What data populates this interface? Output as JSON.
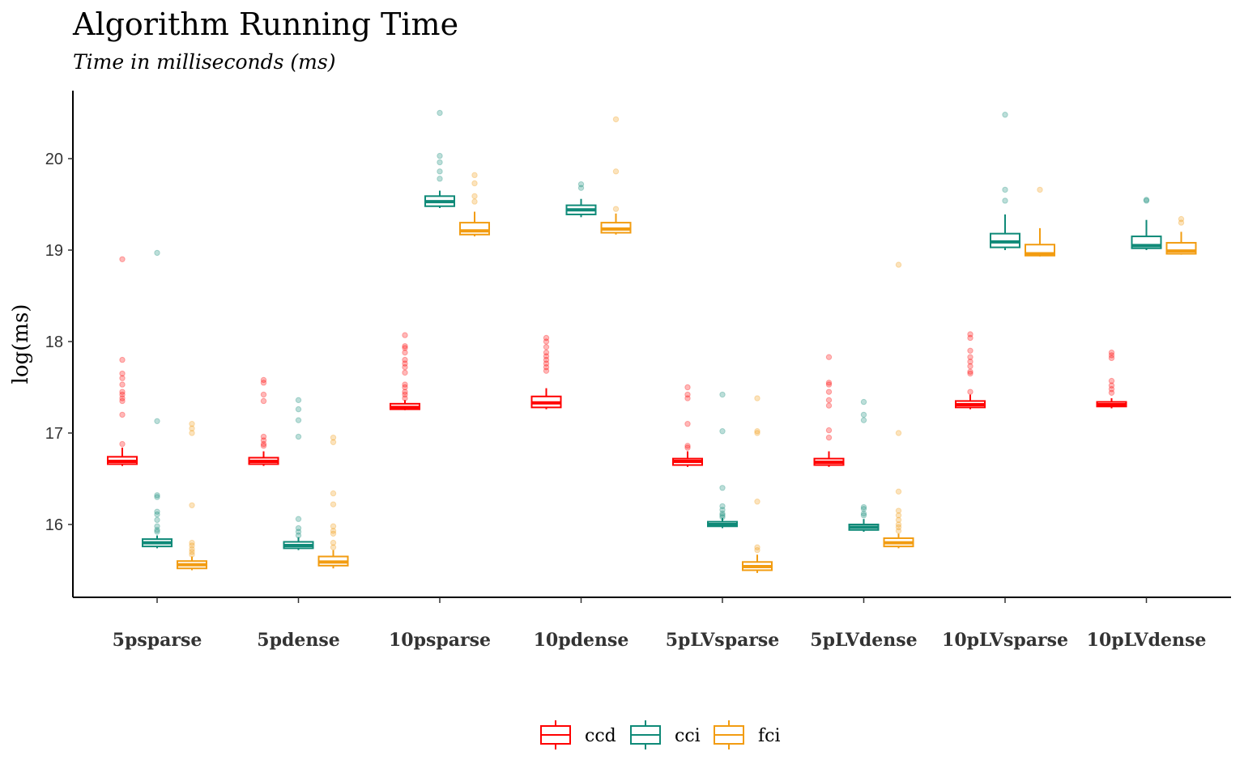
{
  "chart_data": {
    "type": "box",
    "title": "Algorithm Running Time",
    "subtitle": "Time in milliseconds (ms)",
    "xlabel": "",
    "ylabel": "log(ms)",
    "ylim": [
      15.2,
      20.75
    ],
    "yticks": [
      16,
      17,
      18,
      19,
      20
    ],
    "grid": false,
    "legend_position": "bottom",
    "categories": [
      "5psparse",
      "5pdense",
      "10psparse",
      "10pdense",
      "5pLVsparse",
      "5pLVdense",
      "10pLVsparse",
      "10pLVdense"
    ],
    "series": [
      {
        "name": "ccd",
        "color": "#FF0000",
        "boxes": [
          {
            "whislo": 16.64,
            "q1": 16.66,
            "med": 16.69,
            "q3": 16.74,
            "whishi": 16.84,
            "fliers": [
              16.88,
              17.2,
              17.35,
              17.38,
              17.42,
              17.45,
              17.53,
              17.6,
              17.65,
              17.8,
              18.9
            ]
          },
          {
            "whislo": 16.64,
            "q1": 16.66,
            "med": 16.69,
            "q3": 16.73,
            "whishi": 16.8,
            "fliers": [
              16.86,
              16.88,
              16.92,
              16.96,
              17.35,
              17.42,
              17.55,
              17.58
            ]
          },
          {
            "whislo": 17.25,
            "q1": 17.26,
            "med": 17.28,
            "q3": 17.32,
            "whishi": 17.36,
            "fliers": [
              17.38,
              17.42,
              17.45,
              17.5,
              17.53,
              17.66,
              17.72,
              17.76,
              17.8,
              17.88,
              17.93,
              17.95,
              18.07
            ]
          },
          {
            "whislo": 17.26,
            "q1": 17.28,
            "med": 17.33,
            "q3": 17.4,
            "whishi": 17.49,
            "fliers": [
              17.68,
              17.72,
              17.76,
              17.8,
              17.84,
              17.88,
              17.94,
              18.0,
              18.04
            ]
          },
          {
            "whislo": 16.63,
            "q1": 16.65,
            "med": 16.69,
            "q3": 16.72,
            "whishi": 16.8,
            "fliers": [
              16.84,
              16.86,
              17.1,
              17.38,
              17.42,
              17.5
            ]
          },
          {
            "whislo": 16.63,
            "q1": 16.65,
            "med": 16.68,
            "q3": 16.72,
            "whishi": 16.8,
            "fliers": [
              16.95,
              17.03,
              17.3,
              17.36,
              17.45,
              17.53,
              17.55,
              17.83
            ]
          },
          {
            "whislo": 17.26,
            "q1": 17.28,
            "med": 17.31,
            "q3": 17.35,
            "whishi": 17.42,
            "fliers": [
              17.45,
              17.65,
              17.67,
              17.73,
              17.78,
              17.83,
              17.9,
              18.04,
              18.08
            ]
          },
          {
            "whislo": 17.27,
            "q1": 17.29,
            "med": 17.31,
            "q3": 17.34,
            "whishi": 17.38,
            "fliers": [
              17.44,
              17.48,
              17.52,
              17.57,
              17.82,
              17.85,
              17.88
            ]
          }
        ]
      },
      {
        "name": "cci",
        "color": "#0F8A78",
        "boxes": [
          {
            "whislo": 15.74,
            "q1": 15.76,
            "med": 15.8,
            "q3": 15.84,
            "whishi": 15.88,
            "fliers": [
              15.92,
              15.94,
              15.98,
              16.05,
              16.11,
              16.14,
              16.3,
              16.32,
              17.13,
              18.97
            ]
          },
          {
            "whislo": 15.72,
            "q1": 15.74,
            "med": 15.77,
            "q3": 15.81,
            "whishi": 15.86,
            "fliers": [
              15.88,
              15.92,
              15.96,
              16.06,
              16.96,
              17.14,
              17.26,
              17.36
            ]
          },
          {
            "whislo": 19.46,
            "q1": 19.48,
            "med": 19.53,
            "q3": 19.59,
            "whishi": 19.65,
            "fliers": [
              19.78,
              19.86,
              19.96,
              20.03,
              20.5
            ]
          },
          {
            "whislo": 19.36,
            "q1": 19.39,
            "med": 19.44,
            "q3": 19.49,
            "whishi": 19.56,
            "fliers": [
              19.68,
              19.72
            ]
          },
          {
            "whislo": 15.96,
            "q1": 15.98,
            "med": 16.0,
            "q3": 16.03,
            "whishi": 16.07,
            "fliers": [
              16.08,
              16.1,
              16.12,
              16.16,
              16.2,
              16.4,
              17.02,
              17.42
            ]
          },
          {
            "whislo": 15.92,
            "q1": 15.94,
            "med": 15.97,
            "q3": 16.0,
            "whishi": 16.06,
            "fliers": [
              16.1,
              16.12,
              16.17,
              16.19,
              17.14,
              17.2,
              17.34
            ]
          },
          {
            "whislo": 19.0,
            "q1": 19.03,
            "med": 19.09,
            "q3": 19.18,
            "whishi": 19.39,
            "fliers": [
              19.54,
              19.66,
              20.48
            ]
          },
          {
            "whislo": 19.0,
            "q1": 19.02,
            "med": 19.05,
            "q3": 19.15,
            "whishi": 19.33,
            "fliers": [
              19.54,
              19.55
            ]
          }
        ]
      },
      {
        "name": "fci",
        "color": "#F29C11",
        "boxes": [
          {
            "whislo": 15.5,
            "q1": 15.52,
            "med": 15.56,
            "q3": 15.6,
            "whishi": 15.65,
            "fliers": [
              15.67,
              15.7,
              15.73,
              15.77,
              15.8,
              16.21,
              17.0,
              17.05,
              17.1
            ]
          },
          {
            "whislo": 15.52,
            "q1": 15.55,
            "med": 15.59,
            "q3": 15.65,
            "whishi": 15.72,
            "fliers": [
              15.75,
              15.8,
              15.9,
              15.93,
              15.98,
              16.22,
              16.34,
              16.9,
              16.95
            ]
          },
          {
            "whislo": 19.15,
            "q1": 19.17,
            "med": 19.21,
            "q3": 19.3,
            "whishi": 19.42,
            "fliers": [
              19.53,
              19.59,
              19.73,
              19.82
            ]
          },
          {
            "whislo": 19.17,
            "q1": 19.19,
            "med": 19.23,
            "q3": 19.3,
            "whishi": 19.4,
            "fliers": [
              19.45,
              19.86,
              20.43
            ]
          },
          {
            "whislo": 15.47,
            "q1": 15.5,
            "med": 15.54,
            "q3": 15.59,
            "whishi": 15.67,
            "fliers": [
              15.72,
              15.75,
              16.25,
              17.0,
              17.02,
              17.38
            ]
          },
          {
            "whislo": 15.74,
            "q1": 15.76,
            "med": 15.8,
            "q3": 15.85,
            "whishi": 15.9,
            "fliers": [
              15.93,
              15.97,
              16.0,
              16.05,
              16.1,
              16.15,
              16.36,
              17.0,
              18.84
            ]
          },
          {
            "whislo": 18.93,
            "q1": 18.94,
            "med": 18.96,
            "q3": 19.06,
            "whishi": 19.24,
            "fliers": [
              19.66
            ]
          },
          {
            "whislo": 18.95,
            "q1": 18.96,
            "med": 18.99,
            "q3": 19.08,
            "whishi": 19.2,
            "fliers": [
              19.3,
              19.34
            ]
          }
        ]
      }
    ]
  }
}
